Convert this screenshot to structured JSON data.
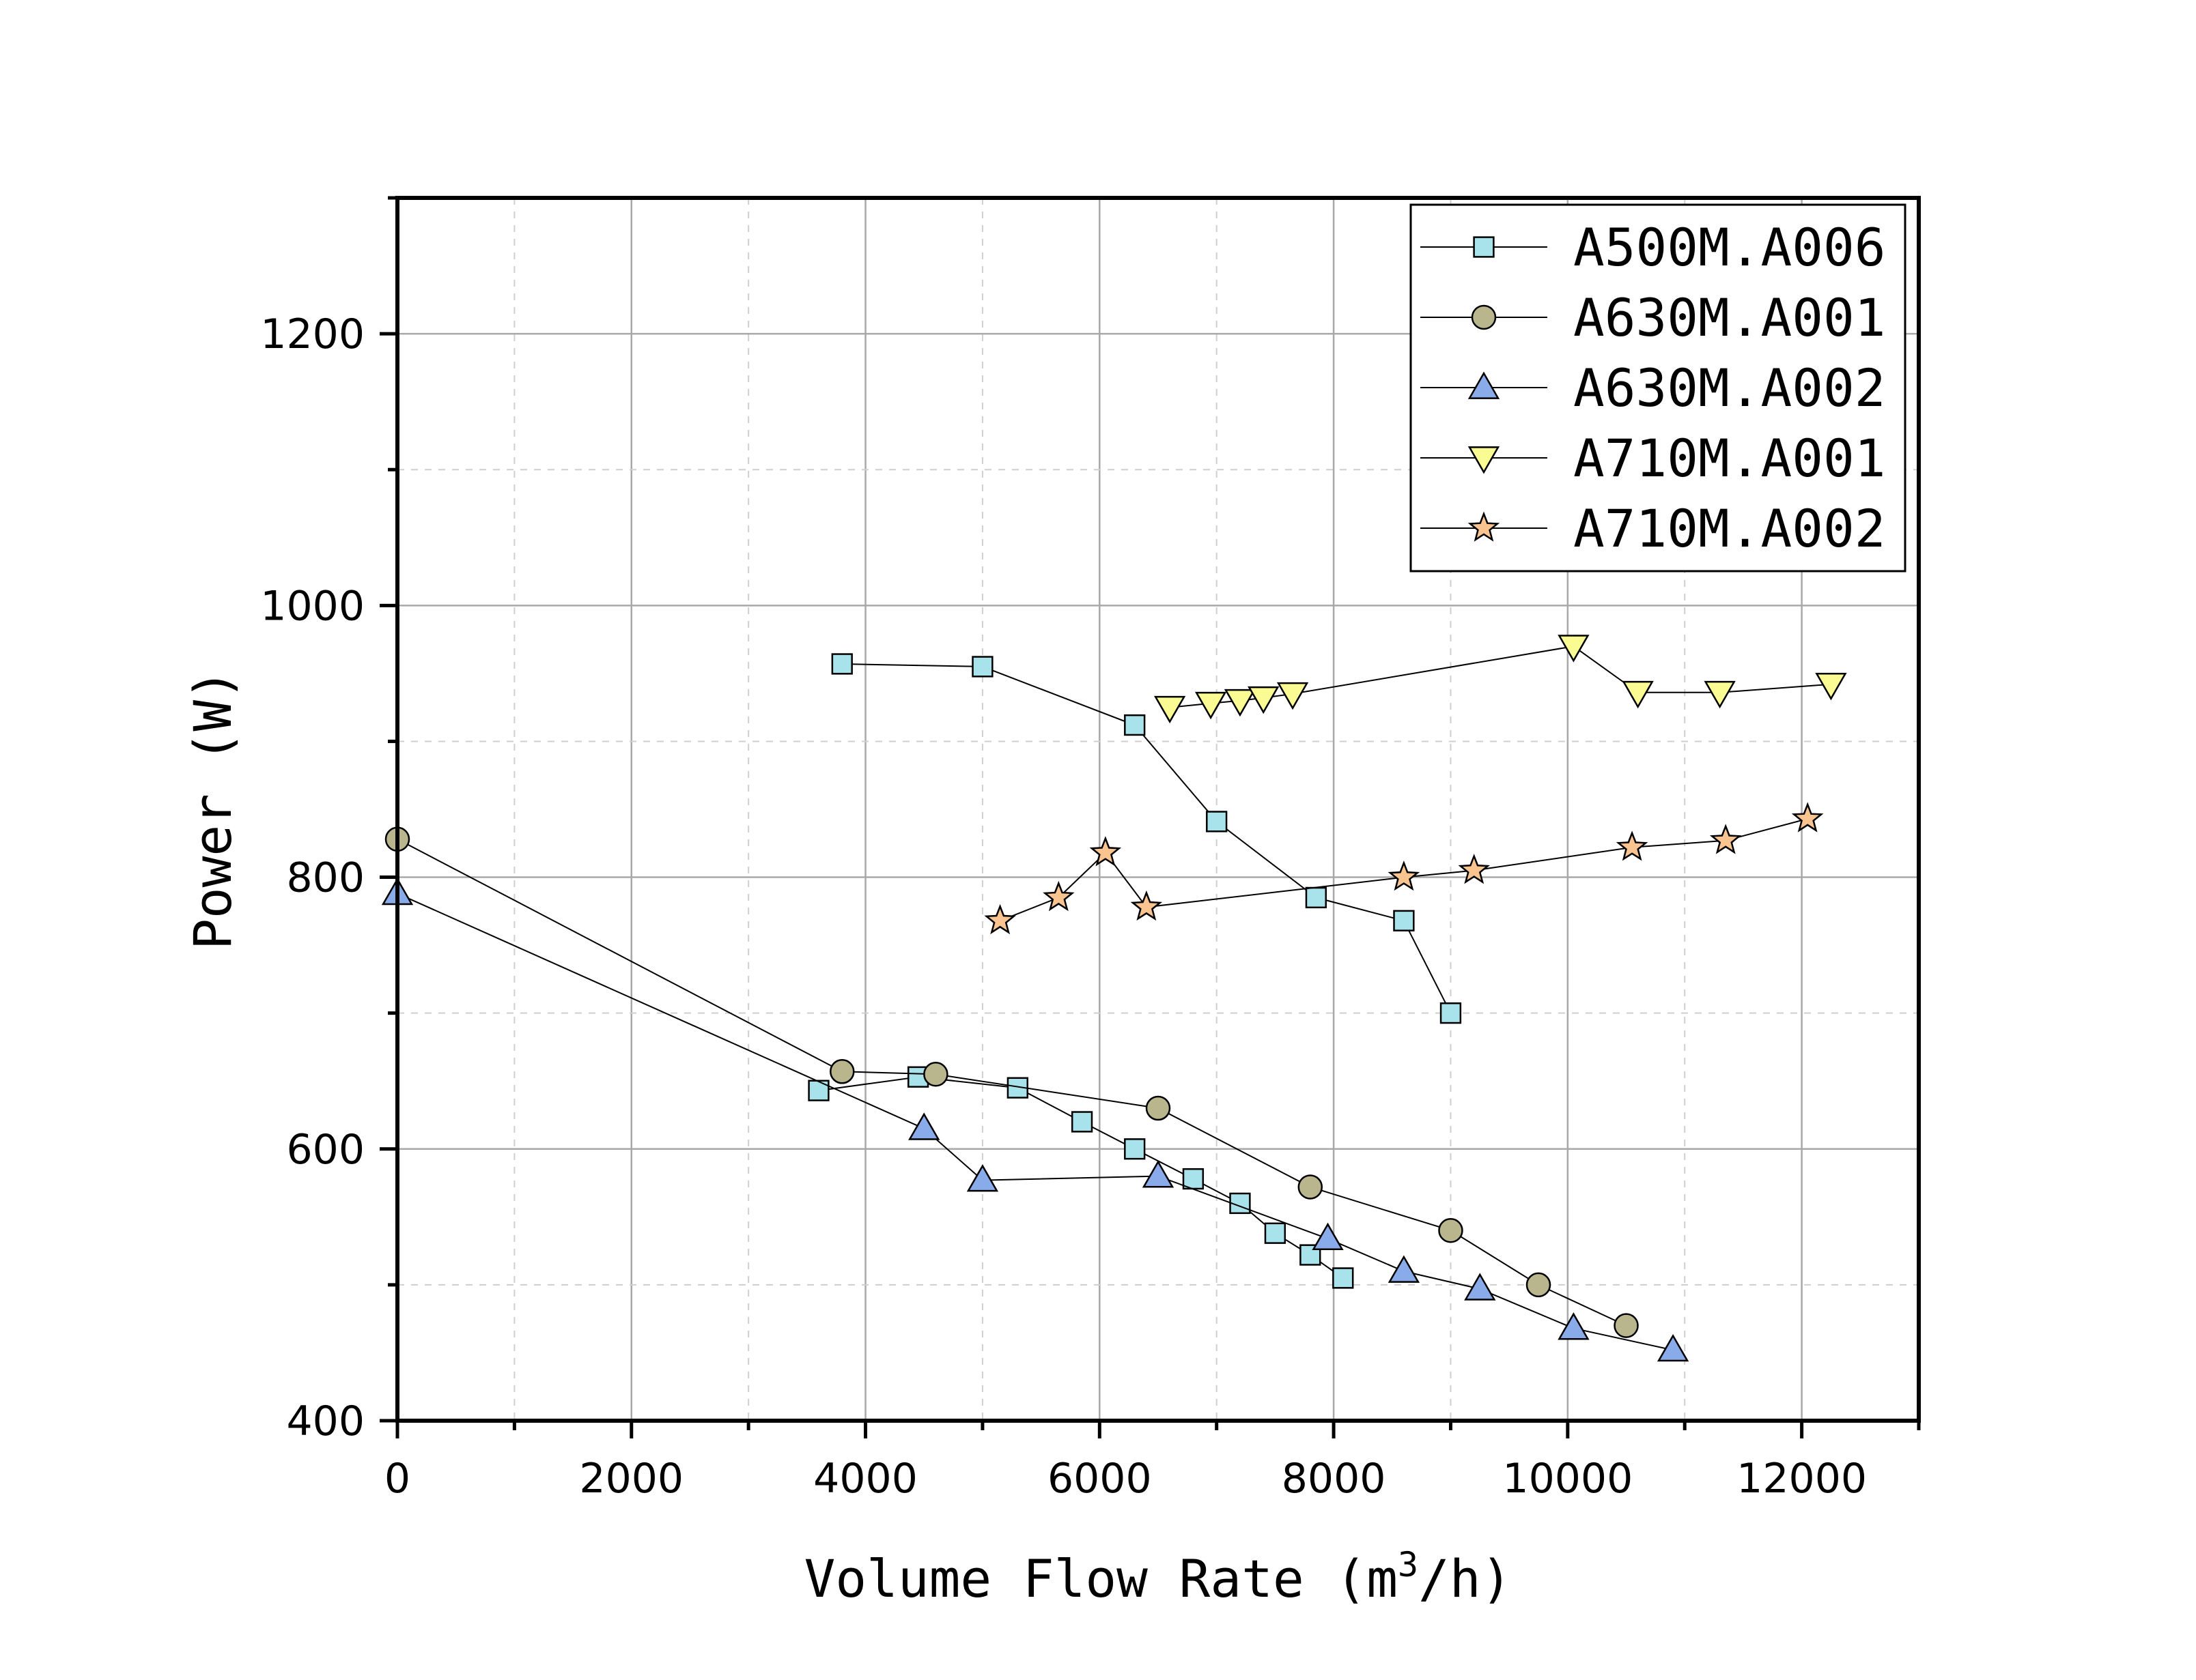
{
  "chart_data": {
    "type": "line",
    "title": "",
    "xlabel_prefix": "Volume Flow Rate (m",
    "xlabel_sup": "3",
    "xlabel_suffix": "/h)",
    "ylabel": "Power (W)",
    "xlim": [
      0,
      13000
    ],
    "ylim": [
      400,
      1300
    ],
    "xticks": [
      0,
      2000,
      4000,
      6000,
      8000,
      10000,
      12000
    ],
    "xtick_labels": [
      "0",
      "2000",
      "4000",
      "6000",
      "8000",
      "10000",
      "12000"
    ],
    "yticks": [
      400,
      600,
      800,
      1000,
      1200
    ],
    "ytick_labels": [
      "400",
      "600",
      "800",
      "1000",
      "1200"
    ],
    "grid": true,
    "legend_position": "top-right",
    "series": [
      {
        "name": "A500M.A006",
        "marker": "square",
        "color": "#a8e2ea",
        "points": [
          [
            3800,
            957
          ],
          [
            5000,
            955
          ],
          [
            6300,
            912
          ],
          [
            7000,
            841
          ],
          [
            7850,
            785
          ],
          [
            8600,
            768
          ],
          [
            9000,
            700
          ]
        ]
      },
      {
        "name": "A500M.A006",
        "marker": "square",
        "color": "#a8e2ea",
        "legend": false,
        "points": [
          [
            3600,
            643
          ],
          [
            4450,
            653
          ],
          [
            5300,
            645
          ],
          [
            5850,
            620
          ],
          [
            6300,
            600
          ],
          [
            6800,
            578
          ],
          [
            7200,
            560
          ],
          [
            7500,
            538
          ],
          [
            7800,
            522
          ],
          [
            8080,
            505
          ]
        ]
      },
      {
        "name": "A630M.A001",
        "marker": "circle",
        "color": "#b9b58d",
        "points": [
          [
            0,
            828
          ],
          [
            3800,
            657
          ],
          [
            4600,
            655
          ],
          [
            6500,
            630
          ],
          [
            7800,
            572
          ],
          [
            9000,
            540
          ],
          [
            9750,
            500
          ],
          [
            10500,
            470
          ]
        ]
      },
      {
        "name": "A630M.A002",
        "marker": "triangle-up",
        "color": "#8aabea",
        "points": [
          [
            0,
            788
          ],
          [
            4500,
            615
          ],
          [
            5000,
            577
          ],
          [
            6500,
            580
          ],
          [
            7950,
            534
          ],
          [
            8600,
            510
          ],
          [
            9250,
            497
          ],
          [
            10050,
            468
          ],
          [
            10900,
            452
          ]
        ]
      },
      {
        "name": "A710M.A001",
        "marker": "triangle-down",
        "color": "#fbfb94",
        "points": [
          [
            6600,
            925
          ],
          [
            6950,
            928
          ],
          [
            7200,
            930
          ],
          [
            7400,
            932
          ],
          [
            7650,
            935
          ],
          [
            10050,
            970
          ],
          [
            10600,
            936
          ],
          [
            11300,
            936
          ],
          [
            12250,
            942
          ]
        ]
      },
      {
        "name": "A710M.A002",
        "marker": "star",
        "color": "#f9c48f",
        "points": [
          [
            5150,
            768
          ],
          [
            5650,
            785
          ],
          [
            6050,
            818
          ],
          [
            6400,
            778
          ],
          [
            8600,
            800
          ],
          [
            9200,
            805
          ],
          [
            10550,
            822
          ],
          [
            11350,
            827
          ],
          [
            12050,
            843
          ]
        ]
      }
    ]
  }
}
